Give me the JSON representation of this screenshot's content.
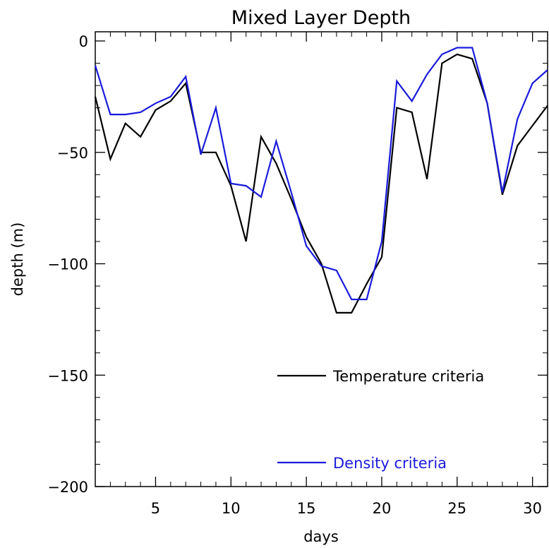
{
  "chart_data": {
    "type": "line",
    "title": "Mixed Layer Depth",
    "xlabel": "days",
    "ylabel": "depth (m)",
    "xlim": [
      1,
      31
    ],
    "ylim": [
      -200,
      0
    ],
    "xticks": [
      5,
      10,
      15,
      20,
      25,
      30
    ],
    "yticks": [
      0,
      -50,
      -100,
      -150,
      -200
    ],
    "legend_position": "bottom-right",
    "grid": false,
    "x": [
      1,
      2,
      3,
      4,
      5,
      6,
      7,
      8,
      9,
      10,
      11,
      12,
      13,
      14,
      15,
      16,
      17,
      18,
      19,
      20,
      21,
      22,
      23,
      24,
      25,
      26,
      27,
      28,
      29,
      30,
      31
    ],
    "series": [
      {
        "name": "Temperature criteria",
        "color": "#000000",
        "values": [
          -25,
          -53,
          -37,
          -43,
          -31,
          -27,
          -19,
          -50,
          -50,
          -65,
          -90,
          -43,
          -55,
          -71,
          -88,
          -100,
          -122,
          -122,
          -109,
          -97,
          -30,
          -32,
          -62,
          -10,
          -6,
          -8,
          -28,
          -69,
          -47,
          -38,
          -29
        ]
      },
      {
        "name": "Density criteria",
        "color": "#1a1adc",
        "values": [
          -11,
          -33,
          -33,
          -32,
          -28,
          -25,
          -16,
          -51,
          -30,
          -64,
          -65,
          -70,
          -45,
          -68,
          -92,
          -101,
          -103,
          -116,
          -116,
          -90,
          -18,
          -27,
          -15,
          -6,
          -3,
          -3,
          -28,
          -68,
          -35,
          -19,
          -13
        ]
      }
    ]
  }
}
